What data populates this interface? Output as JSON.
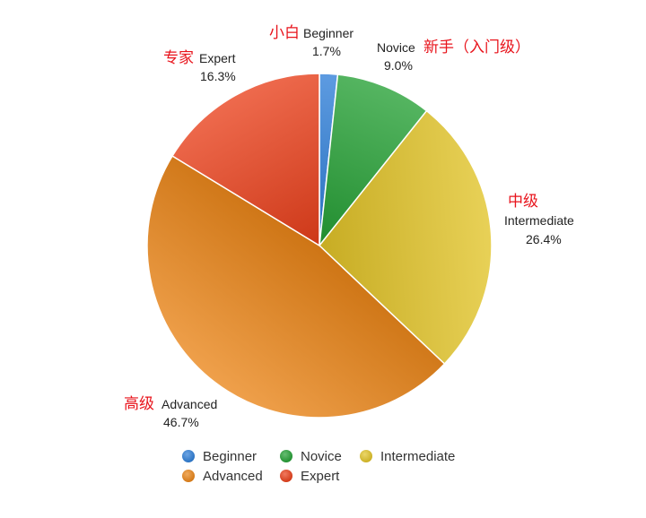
{
  "chart_data": {
    "type": "pie",
    "title": "",
    "categories": [
      "Beginner",
      "Novice",
      "Intermediate",
      "Advanced",
      "Expert"
    ],
    "values": [
      1.7,
      9.0,
      26.4,
      46.7,
      16.3
    ],
    "value_labels": [
      "1.7%",
      "9.0%",
      "26.4%",
      "46.7%",
      "16.3%"
    ],
    "chinese_labels": [
      "小白",
      "新手（入门级）",
      "中级",
      "高级",
      "专家"
    ],
    "colors": [
      "#2f7fd8",
      "#25a035",
      "#e2c428",
      "#ea8518",
      "#e9401b"
    ],
    "start_angle_deg": 0,
    "direction": "clockwise",
    "legend": {
      "position": "bottom",
      "entries": [
        "Beginner",
        "Novice",
        "Intermediate",
        "Advanced",
        "Expert"
      ]
    }
  }
}
